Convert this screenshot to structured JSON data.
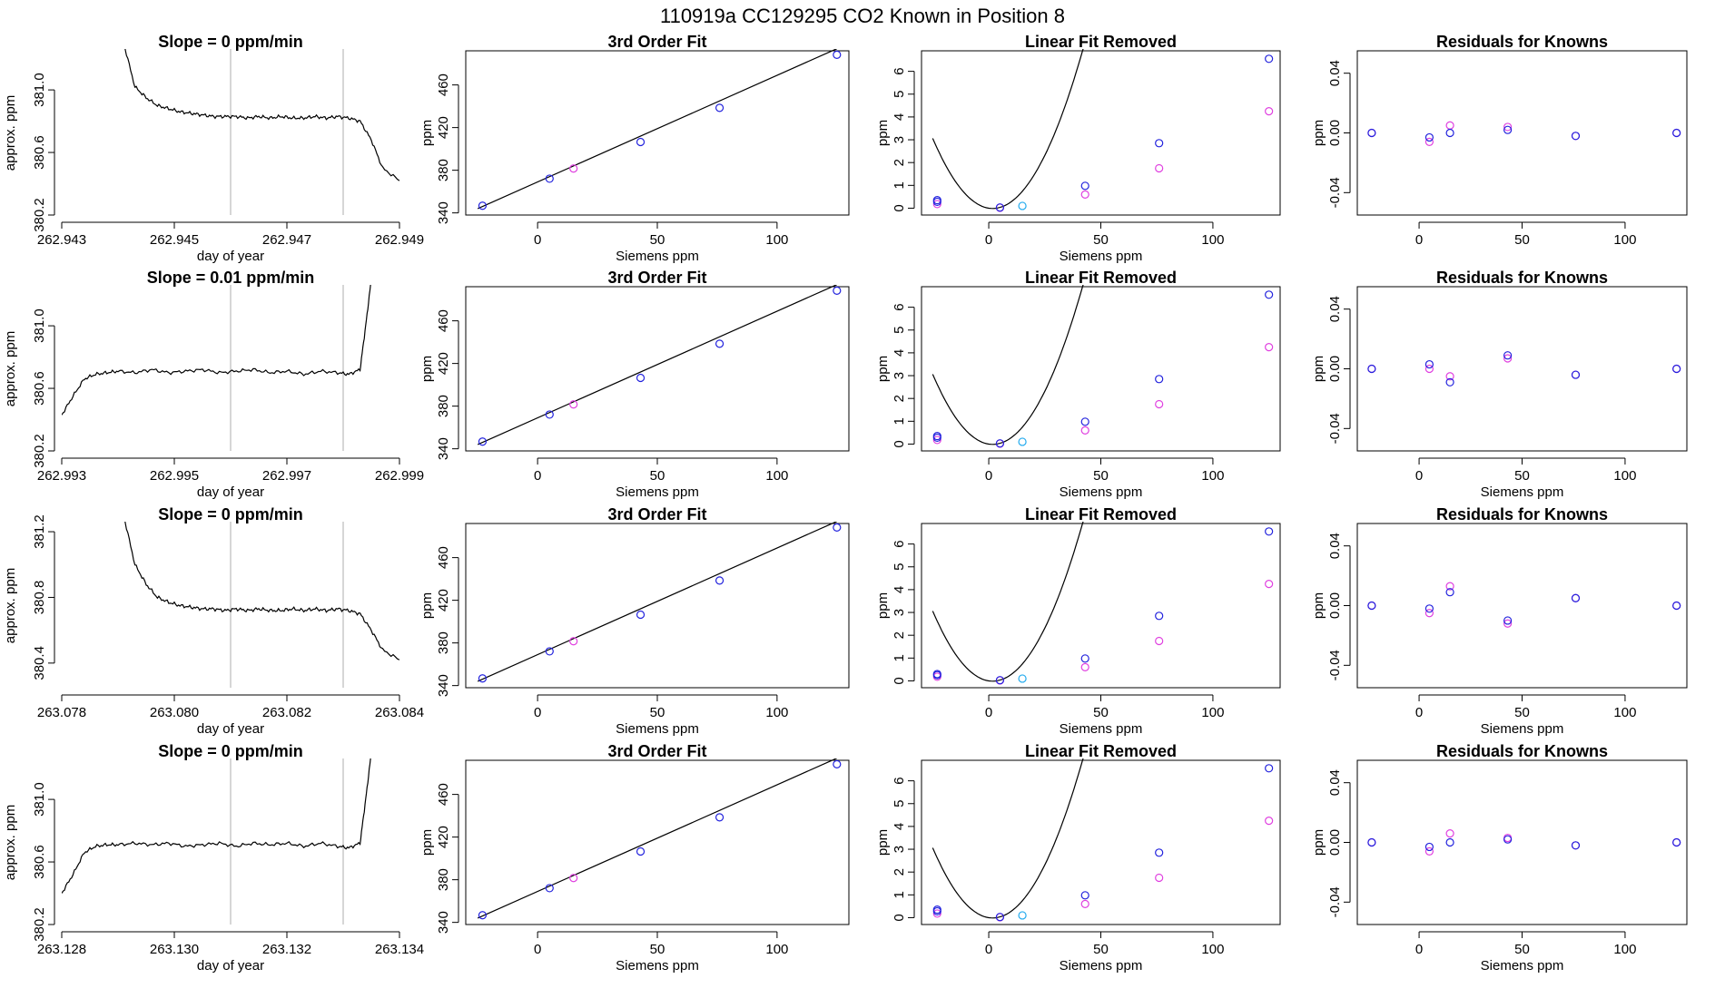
{
  "title": "110919a      CC129295    CO2 Known in Position  8",
  "colors": {
    "trace": "#000000",
    "vline": "#bbbbbb",
    "magenta": "#e040e0",
    "blue": "#2222dd",
    "cyan": "#22aaee",
    "fitline": "#000000"
  },
  "chart_data": [
    {
      "type": "line",
      "panel": "time-series",
      "row": 1,
      "title": "Slope =  0  ppm/min",
      "xlabel": "day of year",
      "ylabel": "approx. ppm",
      "xlim": [
        262.943,
        262.949
      ],
      "ylim": [
        380.2,
        381.25
      ],
      "xticks": [
        262.943,
        262.945,
        262.947,
        262.949
      ],
      "xtick_labels": [
        "262.943",
        "262.945",
        "262.947",
        "262.949"
      ],
      "yticks": [
        380.2,
        380.6,
        381.0
      ],
      "ytick_labels": [
        "380.2",
        "380.6",
        "381.0"
      ],
      "vlines": [
        262.946,
        262.948
      ],
      "x": [
        262.9441,
        262.9443,
        262.9445,
        262.9447,
        262.9449,
        262.9451,
        262.9453,
        262.9455,
        262.9457,
        262.9459,
        262.9461,
        262.9463,
        262.9465,
        262.9467,
        262.9469,
        262.9471,
        262.9473,
        262.9475,
        262.9477,
        262.9479,
        262.9481,
        262.9483,
        262.9485,
        262.9487,
        262.949
      ],
      "y": [
        381.3,
        381.02,
        380.95,
        380.9,
        380.88,
        380.86,
        380.85,
        380.84,
        380.83,
        380.83,
        380.83,
        380.82,
        380.83,
        380.82,
        380.83,
        380.82,
        380.82,
        380.83,
        380.82,
        380.83,
        380.82,
        380.8,
        380.68,
        380.5,
        380.42
      ]
    },
    {
      "type": "line+scatter",
      "panel": "third-order-fit",
      "row": 1,
      "title": "3rd Order Fit",
      "xlabel": "Siemens ppm",
      "ylabel": "ppm",
      "xlim": [
        -30,
        130
      ],
      "ylim": [
        338,
        492
      ],
      "xticks": [
        0,
        50,
        100
      ],
      "yticks": [
        340,
        380,
        420,
        460
      ],
      "fit_x": [
        -25,
        125
      ],
      "fit_y": [
        344,
        494
      ],
      "points_blue_x": [
        -23,
        5,
        43,
        76,
        125
      ],
      "points_blue_y": [
        346.7,
        372.1,
        406.5,
        438.5,
        488.3
      ],
      "points_magenta_x": [
        15
      ],
      "points_magenta_y": [
        381.6
      ]
    },
    {
      "type": "line+scatter",
      "panel": "linear-fit-removed",
      "row": 1,
      "title": "Linear Fit Removed",
      "xlabel": "Siemens ppm",
      "ylabel": "ppm",
      "xlim": [
        -30,
        130
      ],
      "ylim": [
        -0.3,
        6.9
      ],
      "xticks": [
        0,
        50,
        100
      ],
      "yticks": [
        0,
        1,
        2,
        3,
        4,
        5,
        6
      ],
      "curve_coeffs": [
        0.0043,
        -0.015,
        0.0
      ],
      "points_blue_x": [
        -23,
        -23,
        5,
        43,
        76,
        125
      ],
      "points_blue_y": [
        0.35,
        0.28,
        0.03,
        0.98,
        2.85,
        6.55
      ],
      "points_magenta_x": [
        -23,
        5,
        43,
        76,
        125
      ],
      "points_magenta_y": [
        0.18,
        0.02,
        0.6,
        1.75,
        4.25
      ],
      "points_cyan_x": [
        15
      ],
      "points_cyan_y": [
        0.1
      ]
    },
    {
      "type": "scatter",
      "panel": "residuals",
      "row": 1,
      "title": "Residuals for Knowns",
      "xlabel": "",
      "ylabel": "ppm",
      "xlim": [
        -30,
        130
      ],
      "ylim": [
        -0.055,
        0.055
      ],
      "xticks": [
        0,
        50,
        100
      ],
      "yticks": [
        -0.04,
        0.0,
        0.04
      ],
      "ytick_labels": [
        "-0.04",
        "0.00",
        "0.04"
      ],
      "points_blue_x": [
        -23,
        5,
        15,
        43,
        76,
        125
      ],
      "points_blue_y": [
        0.0,
        -0.003,
        0.0,
        0.002,
        -0.002,
        0.0
      ],
      "points_magenta_x": [
        -23,
        5,
        15,
        43,
        76,
        125
      ],
      "points_magenta_y": [
        0.0,
        -0.006,
        0.005,
        0.004,
        -0.002,
        0.0
      ]
    },
    {
      "type": "line",
      "panel": "time-series",
      "row": 2,
      "title": "Slope =  0.01  ppm/min",
      "xlabel": "day of year",
      "ylabel": "approx. ppm",
      "xlim": [
        262.993,
        262.999
      ],
      "ylim": [
        380.2,
        381.25
      ],
      "xticks": [
        262.993,
        262.995,
        262.997,
        262.999
      ],
      "xtick_labels": [
        "262.993",
        "262.995",
        "262.997",
        "262.999"
      ],
      "yticks": [
        380.2,
        380.6,
        381.0
      ],
      "ytick_labels": [
        "380.2",
        "380.6",
        "381.0"
      ],
      "vlines": [
        262.996,
        262.998
      ],
      "x": [
        262.993,
        262.9932,
        262.9934,
        262.9936,
        262.9938,
        262.994,
        262.9943,
        262.9946,
        262.9949,
        262.9952,
        262.9955,
        262.9958,
        262.9961,
        262.9964,
        262.9967,
        262.997,
        262.9973,
        262.9976,
        262.9979,
        262.9981,
        262.9983,
        262.9984,
        262.9985
      ],
      "y": [
        380.43,
        380.55,
        380.66,
        380.69,
        380.7,
        380.71,
        380.7,
        380.72,
        380.7,
        380.71,
        380.72,
        380.7,
        380.71,
        380.72,
        380.7,
        380.71,
        380.69,
        380.71,
        380.7,
        380.69,
        380.72,
        381.0,
        381.3
      ]
    },
    {
      "type": "line+scatter",
      "panel": "third-order-fit",
      "row": 2,
      "title": "3rd Order Fit",
      "xlabel": "Siemens ppm",
      "ylabel": "ppm",
      "xlim": [
        -30,
        130
      ],
      "ylim": [
        338,
        492
      ],
      "xticks": [
        0,
        50,
        100
      ],
      "yticks": [
        340,
        380,
        420,
        460
      ],
      "fit_x": [
        -25,
        125
      ],
      "fit_y": [
        344,
        494
      ],
      "points_blue_x": [
        -23,
        5,
        43,
        76,
        125
      ],
      "points_blue_y": [
        346.7,
        372.1,
        406.5,
        438.5,
        488.3
      ],
      "points_magenta_x": [
        15
      ],
      "points_magenta_y": [
        381.6
      ]
    },
    {
      "type": "line+scatter",
      "panel": "linear-fit-removed",
      "row": 2,
      "title": "Linear Fit Removed",
      "xlabel": "Siemens ppm",
      "ylabel": "ppm",
      "xlim": [
        -30,
        130
      ],
      "ylim": [
        -0.3,
        6.9
      ],
      "xticks": [
        0,
        50,
        100
      ],
      "yticks": [
        0,
        1,
        2,
        3,
        4,
        5,
        6
      ],
      "curve_coeffs": [
        0.0043,
        -0.015,
        0.0
      ],
      "points_blue_x": [
        -23,
        -23,
        5,
        43,
        76,
        125
      ],
      "points_blue_y": [
        0.35,
        0.28,
        0.03,
        0.98,
        2.85,
        6.55
      ],
      "points_magenta_x": [
        -23,
        5,
        43,
        76,
        125
      ],
      "points_magenta_y": [
        0.18,
        0.02,
        0.6,
        1.75,
        4.25
      ],
      "points_cyan_x": [
        15
      ],
      "points_cyan_y": [
        0.1
      ]
    },
    {
      "type": "scatter",
      "panel": "residuals",
      "row": 2,
      "title": "Residuals for Knowns",
      "xlabel": "Siemens ppm",
      "ylabel": "ppm",
      "xlim": [
        -30,
        130
      ],
      "ylim": [
        -0.055,
        0.055
      ],
      "xticks": [
        0,
        50,
        100
      ],
      "yticks": [
        -0.04,
        0.0,
        0.04
      ],
      "ytick_labels": [
        "-0.04",
        "0.00",
        "0.04"
      ],
      "points_blue_x": [
        -23,
        5,
        15,
        43,
        76,
        125
      ],
      "points_blue_y": [
        0.0,
        0.003,
        -0.009,
        0.009,
        -0.004,
        0.0
      ],
      "points_magenta_x": [
        -23,
        5,
        15,
        43,
        76,
        125
      ],
      "points_magenta_y": [
        0.0,
        0.0,
        -0.005,
        0.007,
        -0.004,
        0.0
      ]
    },
    {
      "type": "line",
      "panel": "time-series",
      "row": 3,
      "title": "Slope =  0  ppm/min",
      "xlabel": "day of year",
      "ylabel": "approx. ppm",
      "xlim": [
        263.078,
        263.084
      ],
      "ylim": [
        380.25,
        381.25
      ],
      "xticks": [
        263.078,
        263.08,
        263.082,
        263.084
      ],
      "xtick_labels": [
        "263.078",
        "263.080",
        "263.082",
        "263.084"
      ],
      "yticks": [
        380.4,
        380.8,
        381.2
      ],
      "ytick_labels": [
        "380.4",
        "380.8",
        "381.2"
      ],
      "vlines": [
        263.081,
        263.083
      ],
      "x": [
        263.0791,
        263.0793,
        263.0795,
        263.0797,
        263.0799,
        263.0801,
        263.0803,
        263.0805,
        263.0807,
        263.0809,
        263.0811,
        263.0813,
        263.0815,
        263.0817,
        263.0819,
        263.0821,
        263.0823,
        263.0825,
        263.0827,
        263.0829,
        263.0831,
        263.0833,
        263.0835,
        263.0837,
        263.084
      ],
      "y": [
        381.3,
        381.0,
        380.88,
        380.8,
        380.77,
        380.75,
        380.74,
        380.73,
        380.73,
        380.72,
        380.73,
        380.72,
        380.73,
        380.72,
        380.72,
        380.73,
        380.72,
        380.73,
        380.72,
        380.73,
        380.72,
        380.7,
        380.6,
        380.48,
        380.42
      ]
    },
    {
      "type": "line+scatter",
      "panel": "third-order-fit",
      "row": 3,
      "title": "3rd Order Fit",
      "xlabel": "Siemens ppm",
      "ylabel": "ppm",
      "xlim": [
        -30,
        130
      ],
      "ylim": [
        338,
        492
      ],
      "xticks": [
        0,
        50,
        100
      ],
      "yticks": [
        340,
        380,
        420,
        460
      ],
      "fit_x": [
        -25,
        125
      ],
      "fit_y": [
        344,
        494
      ],
      "points_blue_x": [
        -23,
        5,
        43,
        76,
        125
      ],
      "points_blue_y": [
        346.7,
        372.1,
        406.5,
        438.5,
        488.3
      ],
      "points_magenta_x": [
        15
      ],
      "points_magenta_y": [
        381.6
      ]
    },
    {
      "type": "line+scatter",
      "panel": "linear-fit-removed",
      "row": 3,
      "title": "Linear Fit Removed",
      "xlabel": "Siemens ppm",
      "ylabel": "ppm",
      "xlim": [
        -30,
        130
      ],
      "ylim": [
        -0.3,
        6.9
      ],
      "xticks": [
        0,
        50,
        100
      ],
      "yticks": [
        0,
        1,
        2,
        3,
        4,
        5,
        6
      ],
      "curve_coeffs": [
        0.0043,
        -0.015,
        0.0
      ],
      "points_blue_x": [
        -23,
        -23,
        5,
        43,
        76,
        125
      ],
      "points_blue_y": [
        0.3,
        0.25,
        0.03,
        0.98,
        2.85,
        6.55
      ],
      "points_magenta_x": [
        -23,
        5,
        43,
        76,
        125
      ],
      "points_magenta_y": [
        0.18,
        0.02,
        0.6,
        1.75,
        4.25
      ],
      "points_cyan_x": [
        15
      ],
      "points_cyan_y": [
        0.1
      ]
    },
    {
      "type": "scatter",
      "panel": "residuals",
      "row": 3,
      "title": "Residuals for Knowns",
      "xlabel": "Siemens ppm",
      "ylabel": "ppm",
      "xlim": [
        -30,
        130
      ],
      "ylim": [
        -0.055,
        0.055
      ],
      "xticks": [
        0,
        50,
        100
      ],
      "yticks": [
        -0.04,
        0.0,
        0.04
      ],
      "ytick_labels": [
        "-0.04",
        "0.00",
        "0.04"
      ],
      "points_blue_x": [
        -23,
        5,
        15,
        43,
        76,
        125
      ],
      "points_blue_y": [
        0.0,
        -0.002,
        0.009,
        -0.01,
        0.005,
        0.0
      ],
      "points_magenta_x": [
        -23,
        5,
        15,
        43,
        76,
        125
      ],
      "points_magenta_y": [
        0.0,
        -0.005,
        0.013,
        -0.012,
        0.005,
        0.0
      ]
    },
    {
      "type": "line",
      "panel": "time-series",
      "row": 4,
      "title": "Slope =  0  ppm/min",
      "xlabel": "day of year",
      "ylabel": "approx. ppm",
      "xlim": [
        263.128,
        263.134
      ],
      "ylim": [
        380.2,
        381.25
      ],
      "xticks": [
        263.128,
        263.13,
        263.132,
        263.134
      ],
      "xtick_labels": [
        "263.128",
        "263.130",
        "263.132",
        "263.134"
      ],
      "yticks": [
        380.2,
        380.6,
        381.0
      ],
      "ytick_labels": [
        "380.2",
        "380.6",
        "381.0"
      ],
      "vlines": [
        263.131,
        263.133
      ],
      "x": [
        263.128,
        263.1282,
        263.1284,
        263.1286,
        263.1288,
        263.129,
        263.1293,
        263.1296,
        263.1299,
        263.1302,
        263.1305,
        263.1308,
        263.1311,
        263.1314,
        263.1317,
        263.132,
        263.1323,
        263.1326,
        263.1329,
        263.1331,
        263.1333,
        263.1334,
        263.1335
      ],
      "y": [
        380.4,
        380.52,
        380.66,
        380.7,
        380.71,
        380.71,
        380.72,
        380.71,
        380.72,
        380.7,
        380.71,
        380.72,
        380.7,
        380.72,
        380.71,
        380.72,
        380.7,
        380.72,
        380.7,
        380.69,
        380.72,
        381.0,
        381.3
      ]
    },
    {
      "type": "line+scatter",
      "panel": "third-order-fit",
      "row": 4,
      "title": "3rd Order Fit",
      "xlabel": "Siemens ppm",
      "ylabel": "ppm",
      "xlim": [
        -30,
        130
      ],
      "ylim": [
        338,
        492
      ],
      "xticks": [
        0,
        50,
        100
      ],
      "yticks": [
        340,
        380,
        420,
        460
      ],
      "fit_x": [
        -25,
        125
      ],
      "fit_y": [
        344,
        494
      ],
      "points_blue_x": [
        -23,
        5,
        43,
        76,
        125
      ],
      "points_blue_y": [
        346.7,
        372.1,
        406.5,
        438.5,
        488.3
      ],
      "points_magenta_x": [
        15
      ],
      "points_magenta_y": [
        381.6
      ]
    },
    {
      "type": "line+scatter",
      "panel": "linear-fit-removed",
      "row": 4,
      "title": "Linear Fit Removed",
      "xlabel": "Siemens ppm",
      "ylabel": "ppm",
      "xlim": [
        -30,
        130
      ],
      "ylim": [
        -0.3,
        6.9
      ],
      "xticks": [
        0,
        50,
        100
      ],
      "yticks": [
        0,
        1,
        2,
        3,
        4,
        5,
        6
      ],
      "curve_coeffs": [
        0.0043,
        -0.015,
        0.0
      ],
      "points_blue_x": [
        -23,
        -23,
        5,
        43,
        76,
        125
      ],
      "points_blue_y": [
        0.35,
        0.28,
        0.03,
        0.98,
        2.85,
        6.55
      ],
      "points_magenta_x": [
        -23,
        5,
        43,
        76,
        125
      ],
      "points_magenta_y": [
        0.18,
        0.02,
        0.6,
        1.75,
        4.25
      ],
      "points_cyan_x": [
        15
      ],
      "points_cyan_y": [
        0.1
      ]
    },
    {
      "type": "scatter",
      "panel": "residuals",
      "row": 4,
      "title": "Residuals for Knowns",
      "xlabel": "Siemens ppm",
      "ylabel": "ppm",
      "xlim": [
        -30,
        130
      ],
      "ylim": [
        -0.055,
        0.055
      ],
      "xticks": [
        0,
        50,
        100
      ],
      "yticks": [
        -0.04,
        0.0,
        0.04
      ],
      "ytick_labels": [
        "-0.04",
        "0.00",
        "0.04"
      ],
      "points_blue_x": [
        -23,
        5,
        15,
        43,
        76,
        125
      ],
      "points_blue_y": [
        0.0,
        -0.003,
        0.0,
        0.002,
        -0.002,
        0.0
      ],
      "points_magenta_x": [
        -23,
        5,
        15,
        43,
        76,
        125
      ],
      "points_magenta_y": [
        0.0,
        -0.006,
        0.006,
        0.003,
        -0.002,
        0.0
      ]
    }
  ]
}
